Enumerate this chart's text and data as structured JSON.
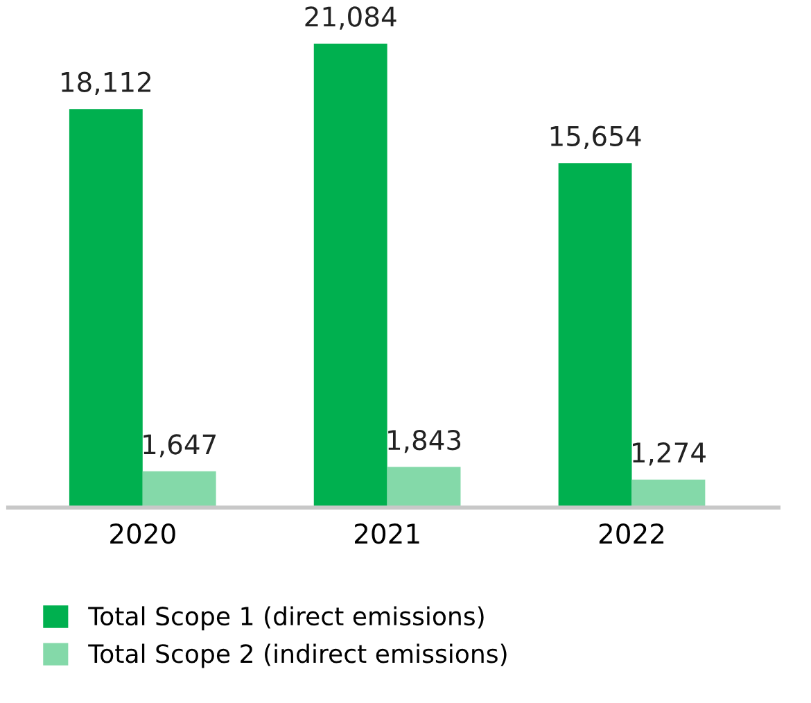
{
  "chart_data": {
    "type": "bar",
    "categories": [
      "2020",
      "2021",
      "2022"
    ],
    "series": [
      {
        "name": "Total Scope 1 (direct emissions)",
        "color": "#00b04f",
        "values": [
          18112,
          21084,
          15654
        ],
        "value_labels": [
          "18,112",
          "21,084",
          "15,654"
        ]
      },
      {
        "name": "Total Scope 2 (indirect emissions)",
        "color": "#84d9a9",
        "values": [
          1647,
          1843,
          1274
        ],
        "value_labels": [
          "1,647",
          "1,843",
          "1,274"
        ]
      }
    ],
    "legend": "bottom left",
    "grid": false
  }
}
